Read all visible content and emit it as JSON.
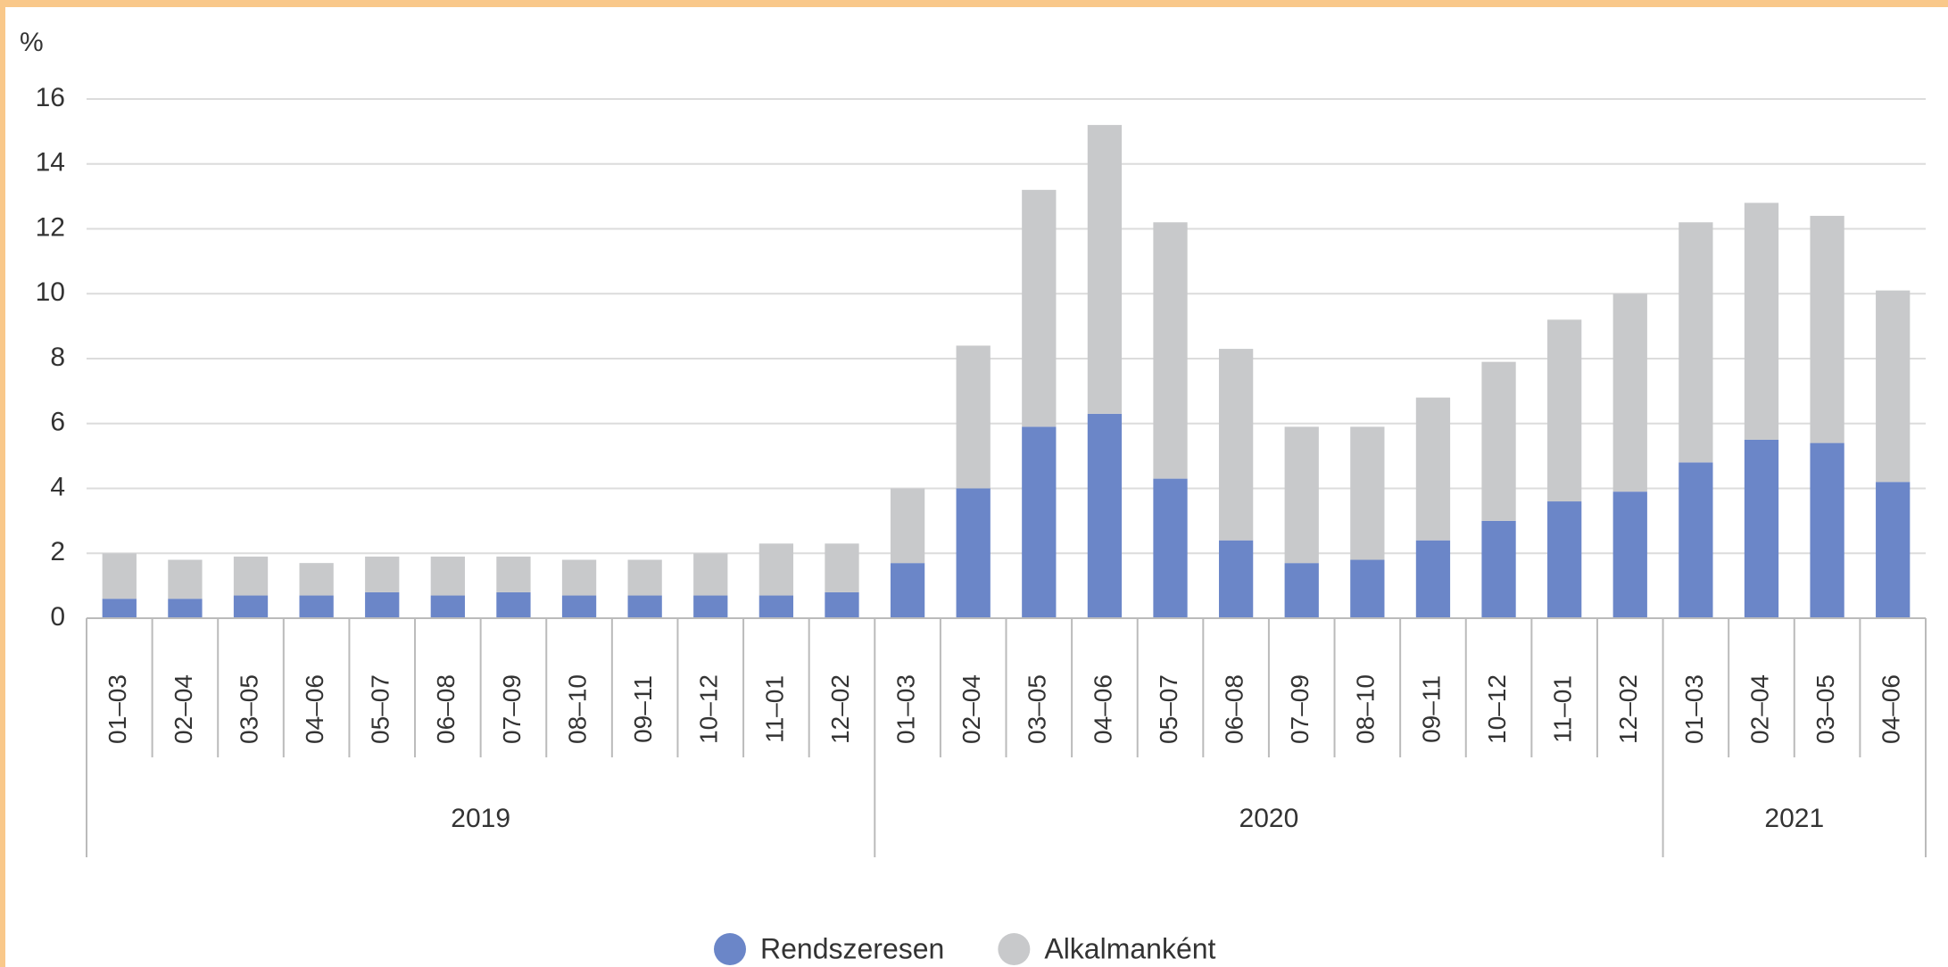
{
  "chart_data": {
    "type": "bar",
    "stacked": true,
    "ylabel": "%",
    "groups": [
      {
        "name": "2019",
        "categories": [
          "01–03",
          "02–04",
          "03–05",
          "04–06",
          "05–07",
          "06–08",
          "07–09",
          "08–10",
          "09–11",
          "10–12",
          "11–01",
          "12–02"
        ]
      },
      {
        "name": "2020",
        "categories": [
          "01–03",
          "02–04",
          "03–05",
          "04–06",
          "05–07",
          "06–08",
          "07–09",
          "08–10",
          "09–11",
          "10–12",
          "11–01",
          "12–02"
        ]
      },
      {
        "name": "2021",
        "categories": [
          "01–03",
          "02–04",
          "03–05",
          "04–06"
        ]
      }
    ],
    "series": [
      {
        "name": "Rendszeresen",
        "color": "#6b86c8",
        "values": [
          0.6,
          0.6,
          0.7,
          0.7,
          0.8,
          0.7,
          0.8,
          0.7,
          0.7,
          0.7,
          0.7,
          0.8,
          1.7,
          4.0,
          5.9,
          6.3,
          4.3,
          2.4,
          1.7,
          1.8,
          2.4,
          3.0,
          3.6,
          3.9,
          4.8,
          5.5,
          5.4,
          4.2
        ]
      },
      {
        "name": "Alkalmanként",
        "color": "#c8c9cb",
        "values": [
          1.4,
          1.2,
          1.2,
          1.0,
          1.1,
          1.2,
          1.1,
          1.1,
          1.1,
          1.3,
          1.6,
          1.5,
          2.3,
          4.4,
          7.3,
          8.9,
          7.9,
          5.9,
          4.2,
          4.1,
          4.4,
          4.9,
          5.6,
          6.1,
          7.4,
          7.3,
          7.0,
          5.9
        ]
      }
    ],
    "ylim": [
      0,
      16
    ],
    "yticks": [
      0,
      2,
      4,
      6,
      8,
      10,
      12,
      14,
      16
    ],
    "grid": true,
    "legend": "bottom"
  }
}
